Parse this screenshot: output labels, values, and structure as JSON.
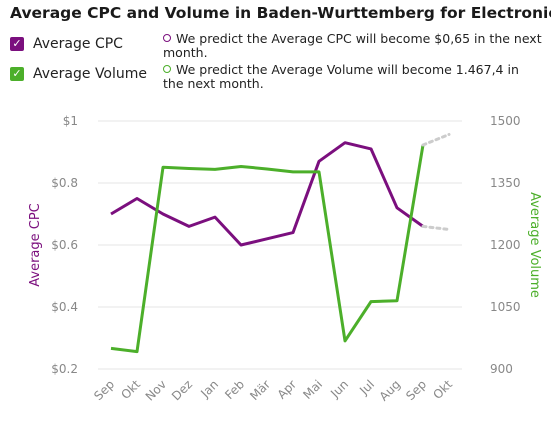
{
  "title": "Average CPC and Volume in Baden-Wurttemberg for Electronics",
  "colors": {
    "cpc": "#7b0f7e",
    "volume": "#4caf2a",
    "grid": "#e6e6e6",
    "forecast": "#cccccc"
  },
  "legend": {
    "cpc_label": "Average CPC",
    "volume_label": "Average Volume",
    "check_icon": "checkbox-checked-icon"
  },
  "predictions": {
    "cpc_text": "We predict the Average CPC will become $0,65 in the next month.",
    "volume_text": "We predict the Average Volume will become 1.467,4 in the next month."
  },
  "chart_data": {
    "type": "line",
    "categories": [
      "Sep",
      "Okt",
      "Nov",
      "Dez",
      "Jan",
      "Feb",
      "Mär",
      "Apr",
      "Mai",
      "Jun",
      "Jul",
      "Aug",
      "Sep",
      "Okt"
    ],
    "y_left": {
      "label": "Average CPC",
      "min": 0.2,
      "max": 1.0,
      "ticks": [
        1.0,
        0.8,
        0.6,
        0.4,
        0.2
      ],
      "tick_labels": [
        "$1",
        "$0.8",
        "$0.6",
        "$0.4",
        "$0.2"
      ]
    },
    "y_right": {
      "label": "Average Volume",
      "min": 900,
      "max": 1500,
      "ticks": [
        1500,
        1350,
        1200,
        1050,
        900
      ],
      "tick_labels": [
        "1500",
        "1350",
        "1200",
        "1050",
        "900"
      ]
    },
    "grid": true,
    "series": [
      {
        "name": "Average CPC",
        "axis": "left",
        "values": [
          0.7,
          0.75,
          0.7,
          0.66,
          0.69,
          0.6,
          0.62,
          0.64,
          0.87,
          0.93,
          0.91,
          0.72,
          0.66,
          null
        ],
        "forecast": [
          0.66,
          0.65
        ]
      },
      {
        "name": "Average Volume",
        "axis": "right",
        "values": [
          950,
          942,
          1388,
          1385,
          1383,
          1390,
          1384,
          1377,
          1377,
          968,
          1063,
          1065,
          1442,
          null
        ],
        "forecast": [
          1442,
          1467.4
        ]
      }
    ]
  }
}
